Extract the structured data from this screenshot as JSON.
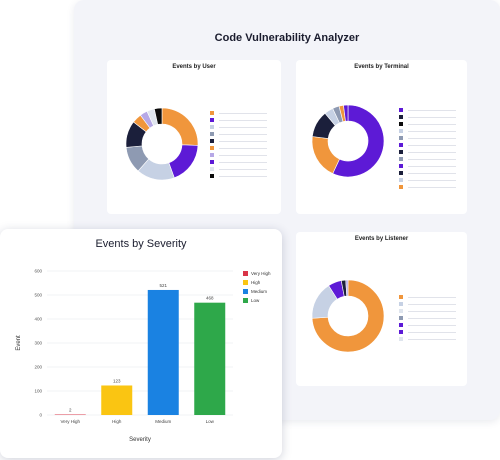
{
  "app": {
    "title": "Code Vulnerability Analyzer"
  },
  "cards": {
    "user": {
      "title": "Events by User"
    },
    "terminal": {
      "title": "Events by Terminal"
    },
    "listener": {
      "title": "Events by Listener"
    }
  },
  "colors": {
    "orange": "#f0963c",
    "purple": "#5d1ad6",
    "navy": "#1b1f3b",
    "grey_blue": "#8e9ab2",
    "light_blue": "#c6d1e4",
    "lilac": "#b6a8e6",
    "red": "#e04f4f",
    "black": "#0b0b0b",
    "pale": "#dfe5ee"
  },
  "severity_chart": {
    "title": "Events by Severity",
    "chart_data": {
      "type": "bar",
      "title": "Events by Severity",
      "xlabel": "Severity",
      "ylabel": "Event",
      "categories": [
        "Very High",
        "High",
        "Medium",
        "Low"
      ],
      "values": [
        2,
        123,
        521,
        468
      ],
      "value_labels": [
        "2",
        "123",
        "521",
        "468"
      ],
      "colors": [
        "#d93548",
        "#fac512",
        "#1a82e2",
        "#2ea84a"
      ],
      "ylim": [
        0,
        600
      ],
      "yticks": [
        "0",
        "100",
        "200",
        "300",
        "400",
        "500",
        "600"
      ],
      "grid": true,
      "legend": {
        "position": "right",
        "entries": [
          "Very High",
          "High",
          "Medium",
          "Low"
        ]
      }
    }
  },
  "donuts": {
    "user": {
      "values": [
        30,
        22,
        20,
        14,
        14,
        5,
        4,
        4,
        4
      ],
      "colors": [
        "#f0963c",
        "#5d1ad6",
        "#c6d1e4",
        "#8e9ab2",
        "#1b1f3b",
        "#f0963c",
        "#b6a8e6",
        "#dfe5ee",
        "#0b0b0b"
      ]
    },
    "terminal": {
      "values": [
        57,
        20,
        12,
        4,
        3,
        2,
        2
      ],
      "colors": [
        "#5d1ad6",
        "#f0963c",
        "#1b1f3b",
        "#c6d1e4",
        "#8e9ab2",
        "#f0963c",
        "#5d1ad6"
      ]
    },
    "listener": {
      "values": [
        74,
        17,
        6,
        2,
        1
      ],
      "colors": [
        "#f0963c",
        "#c6d1e4",
        "#5d1ad6",
        "#1b1f3b",
        "#b6a8e6"
      ]
    }
  },
  "legends": {
    "user": [
      "#f0963c",
      "#5d1ad6",
      "#c6d1e4",
      "#8e9ab2",
      "#1b1f3b",
      "#f0963c",
      "#b6a8e6",
      "#5d1ad6",
      "#dfe5ee",
      "#0b0b0b"
    ],
    "terminal": [
      "#5d1ad6",
      "#1b1f3b",
      "#0b0b0b",
      "#c6d1e4",
      "#8e9ab2",
      "#5d1ad6",
      "#1b1f3b",
      "#8e9ab2",
      "#5d1ad6",
      "#1b1f3b",
      "#c6d1e4",
      "#f0963c"
    ],
    "listener": [
      "#f0963c",
      "#c6d1e4",
      "#dfe5ee",
      "#8e9ab2",
      "#5d1ad6",
      "#5d1ad6",
      "#dfe5ee"
    ]
  }
}
